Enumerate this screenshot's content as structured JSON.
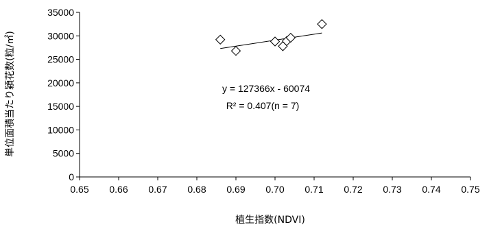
{
  "chart_data": {
    "type": "scatter",
    "xlabel": "植生指数(NDVI)",
    "ylabel": "単位面積当たり穎花数(粒/㎡)",
    "xlim": [
      0.65,
      0.75
    ],
    "ylim": [
      0,
      35000
    ],
    "x_ticks": [
      "0.65",
      "0.66",
      "0.67",
      "0.68",
      "0.69",
      "0.70",
      "0.71",
      "0.72",
      "0.73",
      "0.74",
      "0.75"
    ],
    "y_ticks": [
      "0",
      "5000",
      "10000",
      "15000",
      "20000",
      "25000",
      "30000",
      "35000"
    ],
    "grid": false,
    "marker": "diamond-open",
    "points": [
      {
        "x": 0.686,
        "y": 29200
      },
      {
        "x": 0.69,
        "y": 26800
      },
      {
        "x": 0.7,
        "y": 28800
      },
      {
        "x": 0.702,
        "y": 27800
      },
      {
        "x": 0.703,
        "y": 28900
      },
      {
        "x": 0.704,
        "y": 29600
      },
      {
        "x": 0.712,
        "y": 32500
      }
    ],
    "trendline": {
      "slope": 127366,
      "intercept": -60074,
      "x_range": [
        0.686,
        0.712
      ]
    },
    "annotations": [
      "y = 127366x - 60074",
      "R² = 0.407(n = 7)"
    ]
  }
}
